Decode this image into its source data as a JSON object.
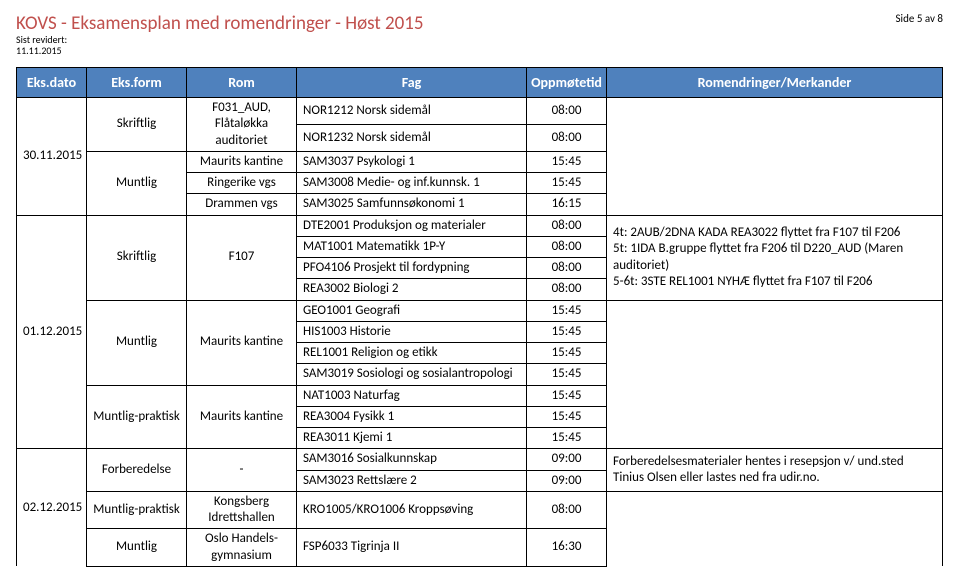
{
  "header": {
    "title": "KOVS - Eksamensplan med romendringer - Høst 2015",
    "page": "Side 5 av 8",
    "revised_label": "Sist revidert:",
    "revised_date": "11.11.2015"
  },
  "columns": {
    "c0": "Eks.dato",
    "c1": "Eks.form",
    "c2": "Rom",
    "c3": "Fag",
    "c4": "Oppmøtetid",
    "c5": "Romendringer/Merkander"
  },
  "colors": {
    "header_bg": "#4f81bd",
    "title_color": "#c0504d"
  },
  "block1": {
    "date": "30.11.2015",
    "rows": [
      {
        "form": "Skriftlig",
        "room": "F031_AUD, Flåtaløkka auditoriet",
        "fag": "NOR1212 Norsk sidemål",
        "time": "08:00"
      },
      {
        "form": "",
        "room": "",
        "fag": "NOR1232 Norsk sidemål",
        "time": "08:00"
      },
      {
        "form": "Muntlig",
        "room": "Maurits kantine",
        "fag": "SAM3037 Psykologi 1",
        "time": "15:45"
      },
      {
        "form": "",
        "room": "Ringerike vgs",
        "fag": "SAM3008 Medie- og inf.kunnsk. 1",
        "time": "15:45"
      },
      {
        "form": "",
        "room": "Drammen vgs",
        "fag": "SAM3025 Samfunnsøkonomi 1",
        "time": "16:15"
      }
    ]
  },
  "block2": {
    "date": "01.12.2015",
    "note": "4t: 2AUB/2DNA KADA REA3022 flyttet fra F107 til F206\n5t: 1IDA B.gruppe flyttet fra F206 til D220_AUD (Maren auditoriet)\n5-6t: 3STE REL1001 NYHÆ flyttet fra F107 til F206",
    "rows": [
      {
        "form": "Skriftlig",
        "room": "F107",
        "fag": "DTE2001 Produksjon og materialer",
        "time": "08:00"
      },
      {
        "form": "",
        "room": "",
        "fag": "MAT1001 Matematikk 1P-Y",
        "time": "08:00"
      },
      {
        "form": "",
        "room": "",
        "fag": "PFO4106 Prosjekt til fordypning",
        "time": "08:00"
      },
      {
        "form": "",
        "room": "",
        "fag": "REA3002 Biologi 2",
        "time": "08:00"
      },
      {
        "form": "Muntlig",
        "room": "Maurits kantine",
        "fag": "GEO1001 Geografi",
        "time": "15:45"
      },
      {
        "form": "",
        "room": "",
        "fag": "HIS1003 Historie",
        "time": "15:45"
      },
      {
        "form": "",
        "room": "",
        "fag": "REL1001 Religion og etikk",
        "time": "15:45"
      },
      {
        "form": "",
        "room": "",
        "fag": "SAM3019 Sosiologi og sosialantropologi",
        "time": "15:45"
      },
      {
        "form": "Muntlig-praktisk",
        "room": "Maurits kantine",
        "fag": "NAT1003 Naturfag",
        "time": "15:45"
      },
      {
        "form": "",
        "room": "",
        "fag": "REA3004 Fysikk 1",
        "time": "15:45"
      },
      {
        "form": "",
        "room": "",
        "fag": "REA3011 Kjemi 1",
        "time": "15:45"
      }
    ]
  },
  "block3": {
    "date": "02.12.2015",
    "note": "Forberedelsesmaterialer hentes i resepsjon v/ und.sted Tinius Olsen eller lastes ned fra udir.no.",
    "rows": [
      {
        "form": "Forberedelse",
        "room": "-",
        "fag": "SAM3016 Sosialkunnskap",
        "time": "09:00"
      },
      {
        "form": "",
        "room": "",
        "fag": "SAM3023 Rettslære 2",
        "time": "09:00"
      },
      {
        "form": "Muntlig-praktisk",
        "room": "Kongsberg Idrettshallen",
        "fag": "KRO1005/KRO1006 Kroppsøving",
        "time": "08:00"
      },
      {
        "form": "Muntlig",
        "room": "Oslo Handels-gymnasium",
        "fag": "FSP6033 Tigrinja II",
        "time": "16:30"
      }
    ]
  }
}
